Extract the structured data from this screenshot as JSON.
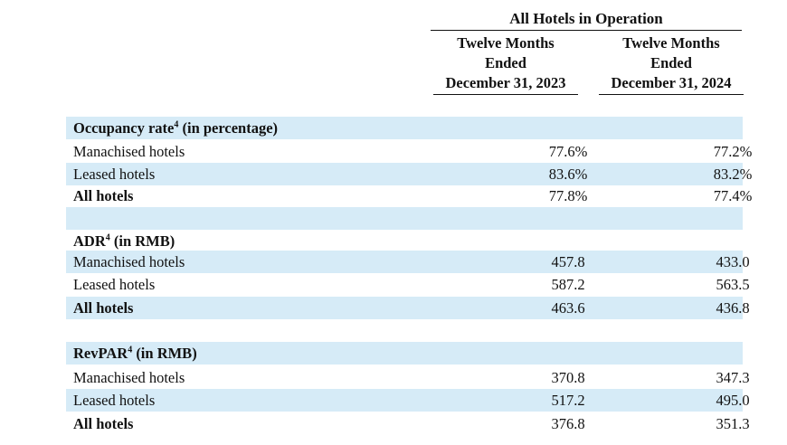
{
  "header": {
    "group_title": "All Hotels in Operation",
    "columns": [
      {
        "line1": "Twelve Months",
        "line2": "Ended",
        "line3": "December 31, 2023"
      },
      {
        "line1": "Twelve Months",
        "line2": "Ended",
        "line3": "December 31, 2024"
      }
    ]
  },
  "sections": [
    {
      "title": "Occupancy rate",
      "footnote": "4",
      "unit": " (in percentage)",
      "rows": [
        {
          "label": "Manachised hotels",
          "v2023": "77.6%",
          "v2024": "77.2%"
        },
        {
          "label": "Leased hotels",
          "v2023": "83.6%",
          "v2024": "83.2%"
        },
        {
          "label": "All hotels",
          "v2023": "77.8%",
          "v2024": "77.4%"
        }
      ]
    },
    {
      "title": "ADR",
      "footnote": "4",
      "unit": " (in RMB)",
      "rows": [
        {
          "label": "Manachised hotels",
          "v2023": "457.8",
          "v2024": "433.0"
        },
        {
          "label": "Leased hotels",
          "v2023": "587.2",
          "v2024": "563.5"
        },
        {
          "label": "All hotels",
          "v2023": "463.6",
          "v2024": "436.8"
        }
      ]
    },
    {
      "title": "RevPAR",
      "footnote": "4",
      "unit": " (in RMB)",
      "rows": [
        {
          "label": "Manachised hotels",
          "v2023": "370.8",
          "v2024": "347.3"
        },
        {
          "label": "Leased hotels",
          "v2023": "517.2",
          "v2024": "495.0"
        },
        {
          "label": "All hotels",
          "v2023": "376.8",
          "v2024": "351.3"
        }
      ]
    }
  ]
}
